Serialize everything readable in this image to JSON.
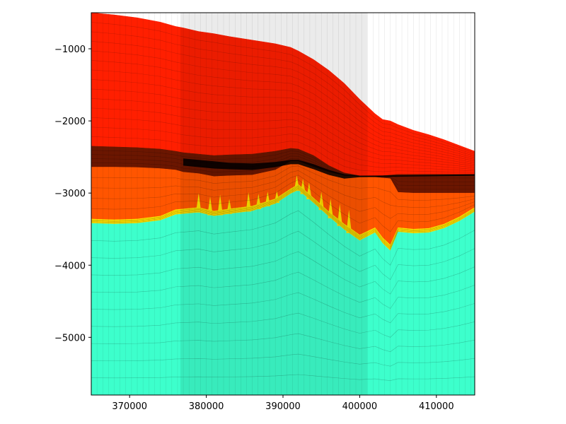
{
  "chart_data": {
    "type": "area",
    "title": "",
    "xlabel": "",
    "ylabel": "",
    "xlim": [
      365000,
      415000
    ],
    "ylim": [
      -5800,
      -500
    ],
    "grid": false,
    "legend": "none",
    "x_ticks": [
      370000,
      380000,
      390000,
      400000,
      410000
    ],
    "x_tick_labels": [
      "370000",
      "380000",
      "390000",
      "400000",
      "410000"
    ],
    "y_ticks": [
      -1000,
      -2000,
      -3000,
      -4000,
      -5000
    ],
    "y_tick_labels": [
      "−1000",
      "−2000",
      "−3000",
      "−4000",
      "−5000"
    ],
    "x": [
      365000,
      368000,
      371000,
      374000,
      376000,
      377000,
      379000,
      381000,
      383000,
      386000,
      389000,
      391000,
      392000,
      394000,
      396000,
      398000,
      400000,
      402000,
      403000,
      404000,
      405000,
      407000,
      409000,
      411000,
      413000,
      415000
    ],
    "series": [
      {
        "color": "#ff1f00",
        "top": [
          -500,
          -530,
          -570,
          -630,
          -690,
          -710,
          -760,
          -790,
          -830,
          -880,
          -930,
          -980,
          -1030,
          -1150,
          -1300,
          -1480,
          -1700,
          -1900,
          -1980,
          -2000,
          -2050,
          -2130,
          -2190,
          -2260,
          -2340,
          -2420
        ],
        "bottom": [
          -2350,
          -2360,
          -2370,
          -2390,
          -2420,
          -2440,
          -2460,
          -2480,
          -2470,
          -2460,
          -2420,
          -2380,
          -2390,
          -2480,
          -2620,
          -2720,
          -2760,
          -2760,
          -2760,
          -2750,
          -2740,
          -2740,
          -2740,
          -2740,
          -2740,
          -2740
        ]
      },
      {
        "color": "#6b1600",
        "top": [
          -2350,
          -2360,
          -2370,
          -2390,
          -2420,
          -2440,
          -2460,
          -2480,
          -2470,
          -2460,
          -2420,
          -2380,
          -2390,
          -2480,
          -2620,
          -2720,
          -2760,
          -2760,
          -2760,
          -2750,
          -2740,
          -2740,
          -2740,
          -2740,
          -2740,
          -2740
        ],
        "bottom": [
          -2640,
          -2640,
          -2645,
          -2660,
          -2680,
          -2710,
          -2730,
          -2770,
          -2760,
          -2750,
          -2680,
          -2560,
          -2560,
          -2640,
          -2710,
          -2760,
          -2770,
          -2780,
          -2790,
          -2800,
          -2990,
          -3000,
          -3000,
          -3000,
          -3000,
          -3000
        ]
      },
      {
        "color": "#ff5500",
        "top": [
          -2640,
          -2640,
          -2645,
          -2660,
          -2680,
          -2710,
          -2730,
          -2770,
          -2760,
          -2750,
          -2680,
          -2560,
          -2560,
          -2640,
          -2710,
          -2760,
          -2770,
          -2780,
          -2790,
          -2800,
          -2990,
          -3000,
          -3000,
          -3000,
          -3000,
          -3000
        ],
        "bottom": [
          -3360,
          -3370,
          -3360,
          -3320,
          -3230,
          -3220,
          -3200,
          -3250,
          -3220,
          -3180,
          -3080,
          -2940,
          -2880,
          -3070,
          -3260,
          -3430,
          -3580,
          -3480,
          -3620,
          -3720,
          -3480,
          -3500,
          -3490,
          -3430,
          -3330,
          -3200
        ]
      },
      {
        "color": "#ffe200",
        "top": [
          -3360,
          -3370,
          -3360,
          -3320,
          -3230,
          -3220,
          -3200,
          -3250,
          -3220,
          -3180,
          -3080,
          -2940,
          -2880,
          -3070,
          -3260,
          -3430,
          -3580,
          -3480,
          -3620,
          -3720,
          -3480,
          -3500,
          -3490,
          -3430,
          -3330,
          -3200
        ],
        "bottom": [
          -3420,
          -3430,
          -3420,
          -3380,
          -3300,
          -3290,
          -3270,
          -3320,
          -3290,
          -3250,
          -3150,
          -3010,
          -2960,
          -3140,
          -3330,
          -3510,
          -3660,
          -3550,
          -3700,
          -3800,
          -3540,
          -3560,
          -3550,
          -3490,
          -3390,
          -3260
        ]
      },
      {
        "color": "#3dffcc",
        "top": [
          -3420,
          -3430,
          -3420,
          -3380,
          -3300,
          -3290,
          -3270,
          -3320,
          -3290,
          -3250,
          -3150,
          -3010,
          -2960,
          -3140,
          -3330,
          -3510,
          -3660,
          -3550,
          -3700,
          -3800,
          -3540,
          -3560,
          -3550,
          -3490,
          -3390,
          -3260
        ],
        "bottom": [
          -5800,
          -5800,
          -5800,
          -5800,
          -5800,
          -5800,
          -5800,
          -5800,
          -5800,
          -5800,
          -5800,
          -5800,
          -5800,
          -5800,
          -5800,
          -5800,
          -5800,
          -5800,
          -5800,
          -5800,
          -5800,
          -5800,
          -5800,
          -5800,
          -5800,
          -5800
        ]
      }
    ],
    "spikes": [
      {
        "x": 379000,
        "y": -3000
      },
      {
        "x": 380500,
        "y": -3050
      },
      {
        "x": 381800,
        "y": -3020
      },
      {
        "x": 383000,
        "y": -3080
      },
      {
        "x": 385500,
        "y": -2990
      },
      {
        "x": 386800,
        "y": -3010
      },
      {
        "x": 388000,
        "y": -2980
      },
      {
        "x": 389200,
        "y": -2970
      },
      {
        "x": 391800,
        "y": -2750
      },
      {
        "x": 392600,
        "y": -2800
      },
      {
        "x": 393400,
        "y": -2850
      },
      {
        "x": 395000,
        "y": -2980
      },
      {
        "x": 396200,
        "y": -3080
      },
      {
        "x": 397400,
        "y": -3150
      },
      {
        "x": 398600,
        "y": -3230
      }
    ],
    "stippled_band": {
      "color": "#000000",
      "x": [
        377000,
        379000,
        381000,
        383000,
        386000,
        389000,
        391000,
        392000,
        394000,
        396000,
        398000,
        400000,
        415000
      ],
      "top": [
        -2520,
        -2540,
        -2560,
        -2580,
        -2590,
        -2570,
        -2540,
        -2540,
        -2600,
        -2680,
        -2740,
        -2760,
        -2740
      ],
      "bottom": [
        -2620,
        -2640,
        -2660,
        -2670,
        -2680,
        -2640,
        -2600,
        -2600,
        -2670,
        -2750,
        -2800,
        -2780,
        -2760
      ]
    }
  }
}
